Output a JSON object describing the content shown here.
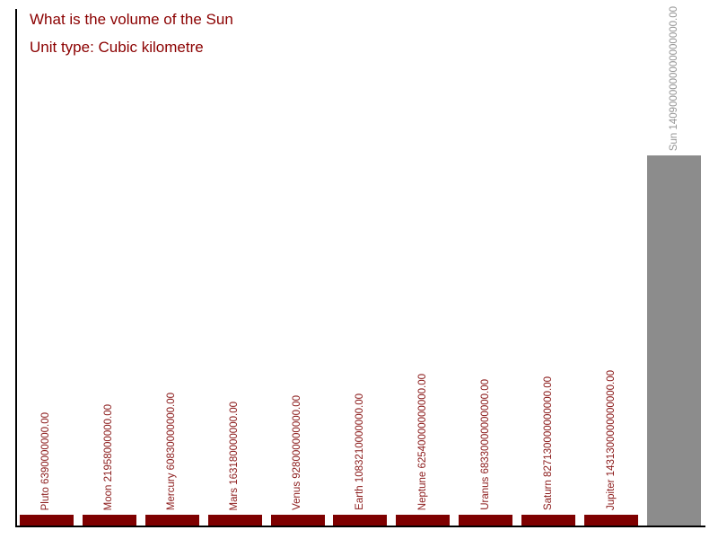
{
  "chart": {
    "title": "What is the volume of the Sun",
    "subtitle": "Unit type: Cubic kilometre"
  },
  "colors": {
    "title_text": "#8B0000",
    "planet_bar": "#7E0000",
    "planet_label": "#8B1A1A",
    "sun_bar": "#8C8C8C",
    "sun_label": "#969696",
    "axis": "#000000",
    "background": "#FFFFFF"
  },
  "chart_data": {
    "type": "bar",
    "title": "What is the volume of the Sun",
    "subtitle": "Unit type: Cubic kilometre",
    "unit": "Cubic kilometre",
    "orientation": "vertical",
    "grid": false,
    "legend": false,
    "ylim": [
      0,
      1409000000000000000
    ],
    "categories": [
      "Pluto",
      "Moon",
      "Mercury",
      "Mars",
      "Venus",
      "Earth",
      "Neptune",
      "Uranus",
      "Saturn",
      "Jupiter",
      "Sun"
    ],
    "values": [
      6390000000,
      21958000000,
      60830000000,
      163180000000,
      928000000000,
      1083210000000,
      62540000000000,
      68330000000000,
      827130000000000,
      1431300000000000,
      1409000000000000000
    ],
    "bar_labels": [
      "Pluto 6390000000.00",
      "Moon 21958000000.00",
      "Mercury 60830000000.00",
      "Mars 163180000000.00",
      "Venus 928000000000.00",
      "Earth 1083210000000.00",
      "Neptune 62540000000000.00",
      "Uranus 68330000000000.00",
      "Saturn 827130000000000.00",
      "Jupiter 1431300000000000.00",
      "Sun 1409000000000000000.00"
    ],
    "highlight_category": "Sun"
  }
}
